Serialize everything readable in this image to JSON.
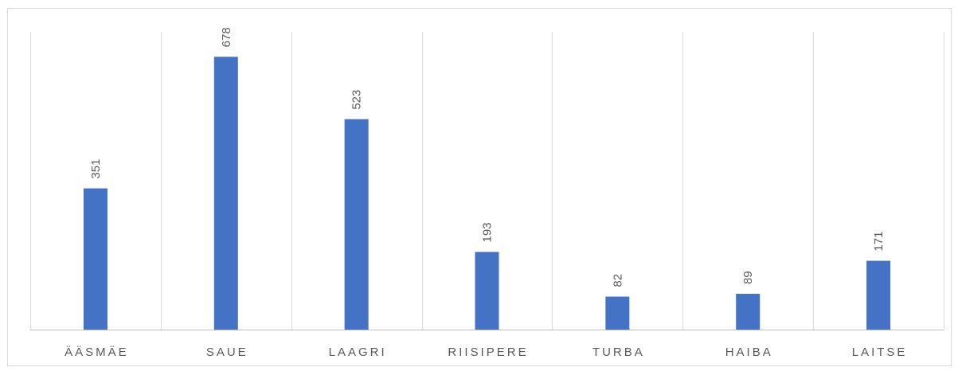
{
  "chart_data": {
    "type": "bar",
    "title": "",
    "xlabel": "",
    "ylabel": "",
    "categories": [
      "ÄÄSMÄE",
      "SAUE",
      "LAAGRI",
      "RIISIPERE",
      "TURBA",
      "HAIBA",
      "LAITSE"
    ],
    "values": [
      351,
      678,
      523,
      193,
      82,
      89,
      171
    ],
    "ylim": [
      0,
      740
    ],
    "grid": true,
    "legend": "none",
    "data_labels": true,
    "colors": {
      "bar": "#4472c4",
      "grid": "#d9d9d9",
      "text": "#595959"
    }
  }
}
